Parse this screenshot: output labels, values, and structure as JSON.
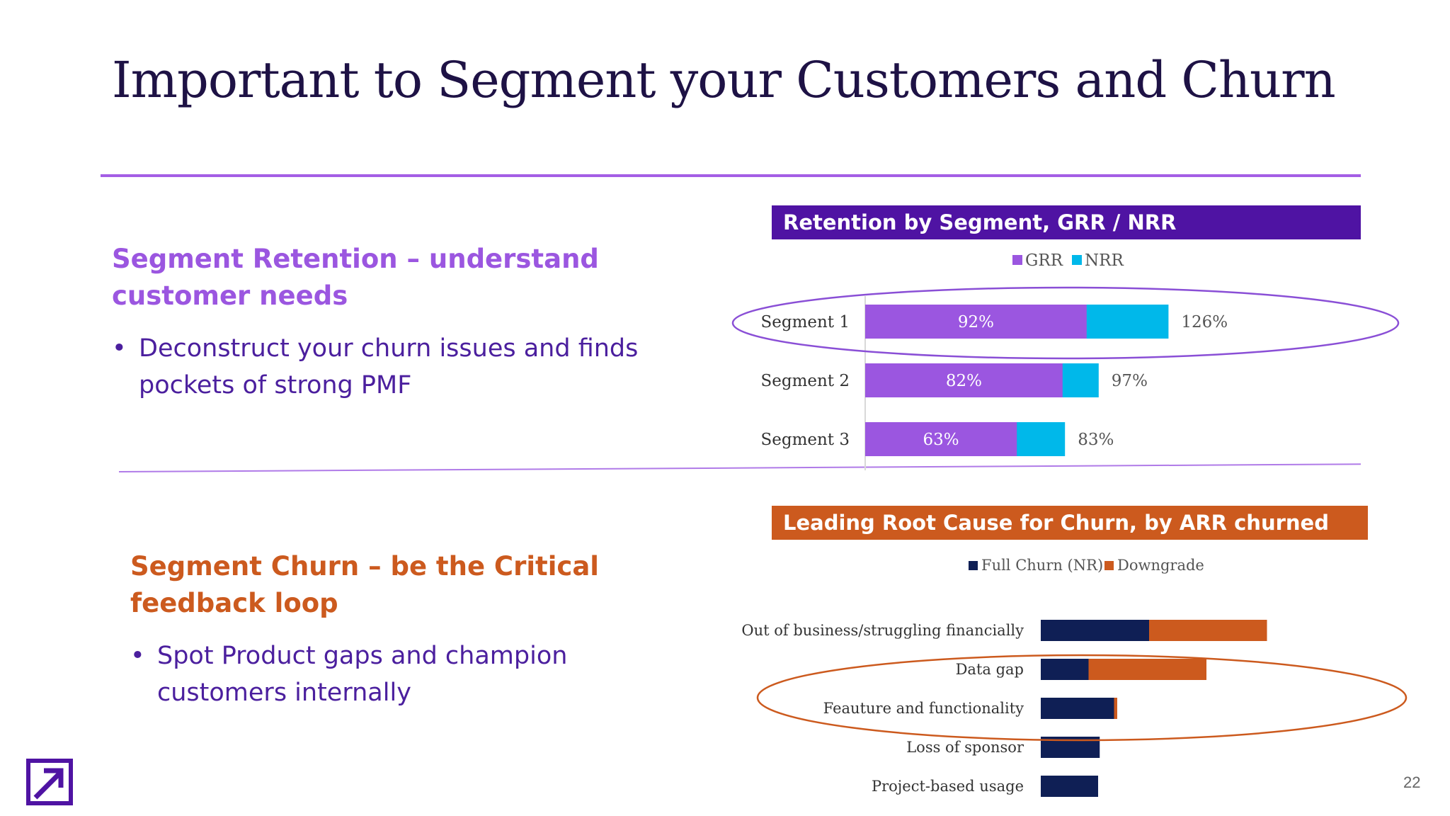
{
  "slide": {
    "title": "Important to Segment your Customers and Churn",
    "page_number": "22"
  },
  "retention_section": {
    "heading": "Segment Retention – understand customer needs",
    "bullet": "Deconstruct your churn issues and finds pockets of strong PMF",
    "color": "#9b56e0"
  },
  "churn_section": {
    "heading": "Segment Churn – be the Critical feedback loop",
    "bullet": "Spot Product gaps and champion customers internally",
    "color": "#cc5a1e"
  },
  "icons": {
    "bullet": "bullet-dot",
    "logo": "arrow-up-right-logo"
  },
  "chart_data": [
    {
      "type": "bar",
      "orientation": "horizontal",
      "title": "Retention by Segment, GRR / NRR",
      "categories": [
        "Segment 1",
        "Segment 2",
        "Segment 3"
      ],
      "series": [
        {
          "name": "GRR",
          "values": [
            92,
            82,
            63
          ],
          "labels": [
            "92%",
            "82%",
            "63%"
          ],
          "color": "#9b56e0"
        },
        {
          "name": "NRR",
          "values": [
            126,
            97,
            83
          ],
          "labels": [
            "126%",
            "97%",
            "83%"
          ],
          "color": "#00b8ea"
        }
      ],
      "xlim": [
        0,
        150
      ],
      "legend": "top",
      "highlight": "Segment 1",
      "banner_color": "#4f13a3"
    },
    {
      "type": "bar",
      "orientation": "horizontal",
      "stacked": true,
      "title": "Leading Root Cause for Churn, by ARR churned",
      "categories": [
        "Out of business/struggling financially",
        "Data gap",
        "Feauture and functionality",
        "Loss of sponsor",
        "Project-based usage"
      ],
      "series": [
        {
          "name": "Full Churn (NR)",
          "values": [
            34,
            15,
            23,
            18.5,
            18
          ],
          "color": "#0f1f55"
        },
        {
          "name": "Downgrade",
          "values": [
            37,
            37,
            1,
            0,
            0
          ],
          "color": "#cc5a1e"
        }
      ],
      "xlim": [
        0,
        100
      ],
      "legend": "top",
      "highlight": [
        "Data gap",
        "Feauture and functionality"
      ],
      "banner_color": "#cc5a1e"
    }
  ]
}
